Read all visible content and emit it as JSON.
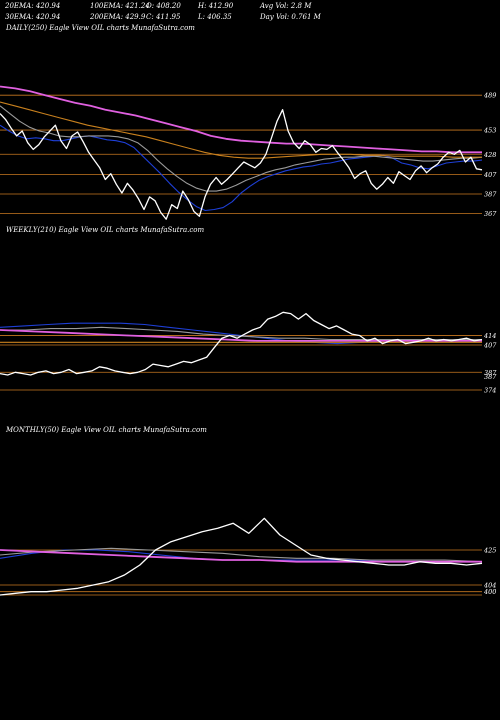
{
  "header": {
    "row1": [
      "20EMA: 420.94",
      "100EMA: 421.24",
      "O: 408.20",
      "H: 412.90",
      "Avg Vol: 2.8 M"
    ],
    "row2": [
      "30EMA: 420.94",
      "200EMA: 429.9",
      "C: 411.95",
      "L: 406.35",
      "Day Vol: 0.761 M"
    ]
  },
  "panels": {
    "daily": {
      "title": "DAILY(250) Eagle   View  OIL  charts MunafaSutra.com"
    },
    "weekly": {
      "title": "WEEKLY(210) Eagle   View  OIL  charts MunafaSutra.com"
    },
    "monthly": {
      "title": "MONTHLY(50) Eagle   View  OIL  charts MunafaSutra.com"
    }
  },
  "colors": {
    "background": "#000000",
    "price": "#ffffff",
    "ema_blue": "#1e3fd6",
    "ema_magenta": "#e060e0",
    "ema_gray": "#9a9a9a",
    "ema_orange": "#c8801e",
    "level_line": "#c87820"
  },
  "chart_data": [
    {
      "type": "line",
      "title": "DAILY(250) Eagle   View  OIL  charts MunafaSutra.com",
      "ylim": [
        355,
        515
      ],
      "levels": [
        489,
        453,
        428,
        407,
        387,
        367
      ],
      "series": [
        {
          "name": "price",
          "color": "#ffffff",
          "values": [
            470,
            464,
            455,
            447,
            452,
            440,
            433,
            438,
            446,
            452,
            458,
            442,
            434,
            447,
            451,
            441,
            430,
            422,
            414,
            402,
            408,
            397,
            388,
            398,
            391,
            382,
            371,
            384,
            380,
            368,
            361,
            376,
            372,
            390,
            381,
            369,
            364,
            384,
            397,
            404,
            397,
            402,
            408,
            414,
            420,
            417,
            414,
            419,
            428,
            445,
            462,
            474,
            452,
            440,
            434,
            442,
            438,
            430,
            434,
            433,
            437,
            429,
            422,
            414,
            403,
            408,
            411,
            398,
            392,
            397,
            404,
            398,
            410,
            406,
            402,
            411,
            416,
            409,
            414,
            418,
            425,
            430,
            428,
            432,
            420,
            425,
            413,
            412
          ]
        },
        {
          "name": "ema_blue",
          "color": "#1e3fd6",
          "values": [
            458,
            452,
            447,
            444,
            445,
            444,
            442,
            442,
            444,
            446,
            447,
            445,
            443,
            442,
            440,
            435,
            426,
            417,
            408,
            398,
            389,
            381,
            374,
            370,
            371,
            373,
            379,
            388,
            395,
            401,
            405,
            408,
            411,
            413,
            415,
            416,
            418,
            419,
            421,
            423,
            424,
            425,
            426,
            427,
            424,
            419,
            417,
            414,
            413,
            416,
            419,
            420,
            421,
            421,
            422
          ]
        },
        {
          "name": "ema_gray",
          "color": "#9a9a9a",
          "values": [
            478,
            470,
            462,
            456,
            452,
            450,
            447,
            446,
            446,
            447,
            447,
            447,
            446,
            444,
            440,
            432,
            422,
            413,
            405,
            398,
            393,
            390,
            390,
            392,
            396,
            401,
            405,
            409,
            412,
            414,
            417,
            419,
            421,
            423,
            424,
            425,
            425,
            426,
            426,
            425,
            424,
            423,
            422,
            421,
            421,
            422,
            423,
            424,
            424,
            425
          ]
        },
        {
          "name": "ema_orange",
          "color": "#c8801e",
          "values": [
            482,
            478,
            474,
            470,
            466,
            462,
            458,
            455,
            452,
            449,
            446,
            442,
            438,
            434,
            430,
            427,
            425,
            424,
            424,
            425,
            426,
            427,
            428,
            428,
            428,
            427,
            427,
            426,
            426,
            426,
            426,
            425,
            425,
            425
          ]
        },
        {
          "name": "ema_magenta",
          "color": "#e060e0",
          "values": [
            498,
            496,
            493,
            489,
            485,
            481,
            478,
            474,
            471,
            468,
            464,
            460,
            456,
            452,
            447,
            444,
            442,
            441,
            440,
            439,
            439,
            438,
            437,
            436,
            435,
            434,
            433,
            432,
            431,
            431,
            430,
            430,
            430
          ]
        }
      ]
    },
    {
      "type": "line",
      "title": "WEEKLY(210) Eagle   View  OIL  charts MunafaSutra.com",
      "ylim": [
        374,
        440
      ],
      "levels": [
        414,
        407,
        387,
        374
      ],
      "tick_labels": [
        "414",
        "407",
        "387",
        "387",
        "374"
      ],
      "series": [
        {
          "name": "price",
          "color": "#ffffff",
          "values": [
            386,
            385,
            387,
            386,
            385,
            387,
            388,
            386,
            387,
            389,
            386,
            387,
            388,
            391,
            390,
            388,
            387,
            386,
            387,
            389,
            393,
            392,
            391,
            393,
            395,
            394,
            396,
            398,
            405,
            412,
            414,
            412,
            415,
            418,
            420,
            426,
            428,
            431,
            430,
            426,
            430,
            425,
            422,
            419,
            421,
            418,
            415,
            414,
            410,
            412,
            408,
            410,
            411,
            408,
            409,
            410,
            412,
            410,
            411,
            410,
            411,
            412,
            410,
            411
          ]
        },
        {
          "name": "ema_blue",
          "color": "#1e3fd6",
          "values": [
            420,
            421,
            422,
            423,
            423,
            423,
            422,
            420,
            418,
            416,
            414,
            412,
            410,
            409,
            408,
            409,
            410,
            410,
            410,
            410,
            411
          ]
        },
        {
          "name": "ema_gray",
          "color": "#9a9a9a",
          "values": [
            418,
            418,
            419,
            419,
            420,
            419,
            418,
            417,
            415,
            414,
            413,
            412,
            412,
            411,
            411,
            411,
            411,
            411,
            411,
            411
          ]
        },
        {
          "name": "ema_magenta",
          "color": "#e060e0",
          "values": [
            418,
            417,
            416,
            415,
            414,
            413,
            412,
            411,
            410,
            410,
            410,
            410,
            410,
            410,
            410,
            410
          ]
        },
        {
          "name": "ema_orange",
          "color": "#c8801e",
          "values": [
            409,
            409,
            409,
            409,
            409,
            409,
            409,
            409,
            409,
            409,
            409,
            409
          ]
        }
      ]
    },
    {
      "type": "line",
      "title": "MONTHLY(50) Eagle   View  OIL  charts MunafaSutra.com",
      "ylim": [
        395,
        455
      ],
      "levels": [
        425,
        404,
        400,
        398
      ],
      "tick_labels": [
        "425",
        "404",
        "400"
      ],
      "series": [
        {
          "name": "price",
          "color": "#ffffff",
          "values": [
            398,
            399,
            400,
            400,
            401,
            402,
            404,
            406,
            410,
            416,
            425,
            430,
            433,
            436,
            438,
            441,
            435,
            444,
            434,
            428,
            422,
            420,
            419,
            418,
            417,
            416,
            416,
            418,
            417,
            417,
            416,
            417
          ]
        },
        {
          "name": "ema_blue",
          "color": "#1e3fd6",
          "values": [
            420,
            423,
            425,
            425,
            424,
            422,
            420,
            419,
            419,
            419,
            419,
            419,
            418,
            418,
            418,
            418
          ]
        },
        {
          "name": "ema_gray",
          "color": "#9a9a9a",
          "values": [
            422,
            424,
            425,
            426,
            425,
            424,
            423,
            421,
            420,
            420,
            419,
            419,
            419,
            418
          ]
        },
        {
          "name": "ema_magenta",
          "color": "#e060e0",
          "values": [
            425,
            424,
            423,
            422,
            421,
            420,
            419,
            419,
            418,
            418,
            418,
            418,
            418,
            418
          ]
        }
      ]
    }
  ]
}
